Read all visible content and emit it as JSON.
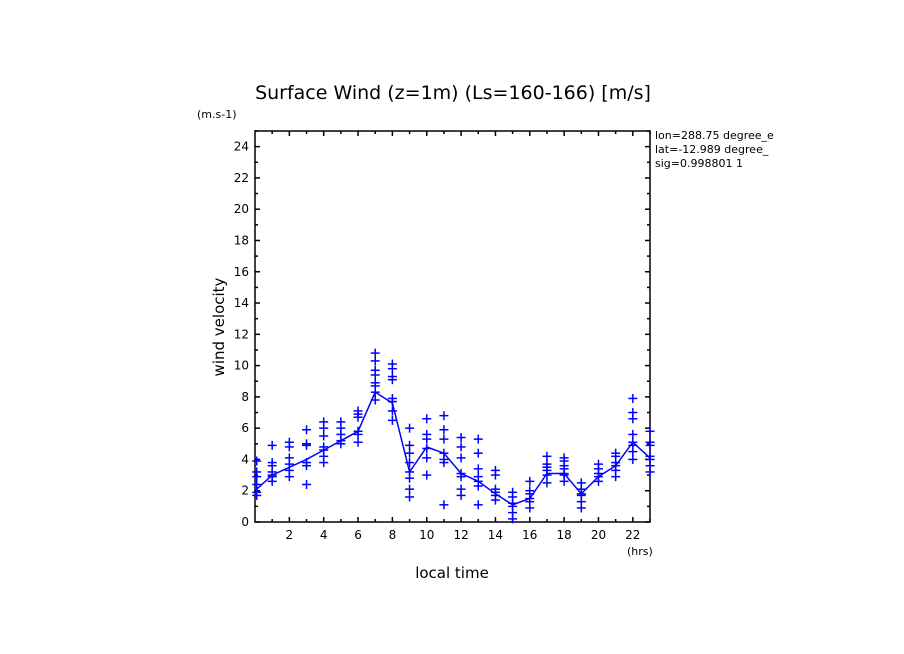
{
  "chart_data": {
    "type": "line",
    "title": "Surface Wind (z=1m) (Ls=160-166) [m/s]",
    "xlabel": "local time",
    "ylabel": "wind velocity",
    "x_unit": "(hrs)",
    "y_unit": "(m.s-1)",
    "xlim": [
      0,
      23
    ],
    "ylim": [
      0,
      25
    ],
    "xticks": [
      2,
      4,
      6,
      8,
      10,
      12,
      14,
      16,
      18,
      20,
      22
    ],
    "yticks": [
      0,
      2,
      4,
      6,
      8,
      10,
      12,
      14,
      16,
      18,
      20,
      22,
      24
    ],
    "grid": false,
    "color": "#0000ff",
    "annotations": [
      "lon=288.75 degree_e",
      "lat=-12.989 degree_",
      "sig=0.998801 1"
    ],
    "series": [
      {
        "kind": "line",
        "x": [
          0.1,
          1.0,
          2.0,
          3.0,
          4.0,
          5.0,
          6.0,
          7.0,
          8.0,
          9.0,
          10.0,
          11.0,
          12.0,
          13.0,
          14.0,
          15.0,
          16.0,
          17.0,
          18.0,
          19.0,
          20.0,
          21.0,
          22.0,
          23.0
        ],
        "y": [
          2.1,
          3.0,
          3.5,
          4.0,
          4.6,
          5.2,
          5.8,
          8.3,
          7.6,
          3.2,
          4.8,
          4.4,
          3.1,
          2.6,
          1.8,
          1.1,
          1.5,
          3.1,
          3.1,
          1.8,
          2.9,
          3.6,
          5.1,
          4.1
        ]
      },
      {
        "kind": "scatter",
        "points": [
          [
            0.1,
            1.7
          ],
          [
            0.1,
            1.9
          ],
          [
            0.1,
            2.4
          ],
          [
            0.1,
            2.9
          ],
          [
            0.1,
            3.2
          ],
          [
            0.1,
            3.9
          ],
          [
            1.0,
            2.6
          ],
          [
            1.0,
            2.9
          ],
          [
            1.0,
            3.0
          ],
          [
            1.0,
            3.2
          ],
          [
            1.0,
            3.6
          ],
          [
            1.0,
            3.8
          ],
          [
            1.0,
            4.9
          ],
          [
            2.0,
            2.9
          ],
          [
            2.0,
            3.3
          ],
          [
            2.0,
            3.7
          ],
          [
            2.0,
            4.1
          ],
          [
            2.0,
            4.8
          ],
          [
            2.0,
            5.1
          ],
          [
            3.0,
            2.4
          ],
          [
            3.0,
            3.6
          ],
          [
            3.0,
            3.8
          ],
          [
            3.0,
            4.9
          ],
          [
            3.0,
            5.0
          ],
          [
            3.0,
            5.9
          ],
          [
            4.0,
            3.8
          ],
          [
            4.0,
            4.2
          ],
          [
            4.0,
            4.6
          ],
          [
            4.0,
            4.8
          ],
          [
            4.0,
            5.5
          ],
          [
            4.0,
            6.0
          ],
          [
            4.0,
            6.4
          ],
          [
            5.0,
            5.0
          ],
          [
            5.0,
            5.2
          ],
          [
            5.0,
            5.6
          ],
          [
            5.0,
            6.0
          ],
          [
            5.0,
            6.4
          ],
          [
            6.0,
            5.1
          ],
          [
            6.0,
            5.6
          ],
          [
            6.0,
            5.8
          ],
          [
            6.0,
            6.7
          ],
          [
            6.0,
            6.9
          ],
          [
            6.0,
            7.1
          ],
          [
            7.0,
            7.8
          ],
          [
            7.0,
            8.3
          ],
          [
            7.0,
            8.7
          ],
          [
            7.0,
            8.9
          ],
          [
            7.0,
            9.4
          ],
          [
            7.0,
            9.7
          ],
          [
            7.0,
            10.3
          ],
          [
            7.0,
            10.8
          ],
          [
            8.0,
            6.5
          ],
          [
            8.0,
            7.1
          ],
          [
            8.0,
            7.7
          ],
          [
            8.0,
            7.9
          ],
          [
            8.0,
            9.1
          ],
          [
            8.0,
            9.3
          ],
          [
            8.0,
            9.8
          ],
          [
            8.0,
            10.1
          ],
          [
            9.0,
            1.6
          ],
          [
            9.0,
            2.1
          ],
          [
            9.0,
            2.8
          ],
          [
            9.0,
            3.2
          ],
          [
            9.0,
            3.8
          ],
          [
            9.0,
            4.4
          ],
          [
            9.0,
            4.9
          ],
          [
            9.0,
            6.0
          ],
          [
            10.0,
            3.0
          ],
          [
            10.0,
            4.1
          ],
          [
            10.0,
            4.7
          ],
          [
            10.0,
            5.3
          ],
          [
            10.0,
            5.6
          ],
          [
            10.0,
            6.6
          ],
          [
            11.0,
            1.1
          ],
          [
            11.0,
            3.8
          ],
          [
            11.0,
            4.0
          ],
          [
            11.0,
            4.4
          ],
          [
            11.0,
            5.3
          ],
          [
            11.0,
            5.9
          ],
          [
            11.0,
            6.8
          ],
          [
            12.0,
            1.7
          ],
          [
            12.0,
            2.1
          ],
          [
            12.0,
            2.9
          ],
          [
            12.0,
            3.1
          ],
          [
            12.0,
            4.1
          ],
          [
            12.0,
            4.8
          ],
          [
            12.0,
            5.4
          ],
          [
            13.0,
            1.1
          ],
          [
            13.0,
            2.3
          ],
          [
            13.0,
            2.6
          ],
          [
            13.0,
            2.9
          ],
          [
            13.0,
            3.4
          ],
          [
            13.0,
            4.4
          ],
          [
            13.0,
            5.3
          ],
          [
            14.0,
            1.4
          ],
          [
            14.0,
            1.7
          ],
          [
            14.0,
            1.9
          ],
          [
            14.0,
            2.1
          ],
          [
            14.0,
            3.0
          ],
          [
            14.0,
            3.3
          ],
          [
            15.0,
            0.2
          ],
          [
            15.0,
            0.6
          ],
          [
            15.0,
            1.0
          ],
          [
            15.0,
            1.2
          ],
          [
            15.0,
            1.6
          ],
          [
            15.0,
            1.9
          ],
          [
            16.0,
            0.9
          ],
          [
            16.0,
            1.3
          ],
          [
            16.0,
            1.5
          ],
          [
            16.0,
            1.8
          ],
          [
            16.0,
            2.0
          ],
          [
            16.0,
            2.6
          ],
          [
            17.0,
            2.5
          ],
          [
            17.0,
            3.0
          ],
          [
            17.0,
            3.3
          ],
          [
            17.0,
            3.5
          ],
          [
            17.0,
            3.7
          ],
          [
            17.0,
            4.2
          ],
          [
            18.0,
            2.6
          ],
          [
            18.0,
            3.0
          ],
          [
            18.0,
            3.1
          ],
          [
            18.0,
            3.4
          ],
          [
            18.0,
            3.6
          ],
          [
            18.0,
            3.9
          ],
          [
            18.0,
            4.1
          ],
          [
            19.0,
            0.9
          ],
          [
            19.0,
            1.3
          ],
          [
            19.0,
            1.7
          ],
          [
            19.0,
            1.8
          ],
          [
            19.0,
            2.1
          ],
          [
            19.0,
            2.5
          ],
          [
            20.0,
            2.6
          ],
          [
            20.0,
            2.9
          ],
          [
            20.0,
            3.1
          ],
          [
            20.0,
            3.4
          ],
          [
            20.0,
            3.7
          ],
          [
            21.0,
            2.9
          ],
          [
            21.0,
            3.3
          ],
          [
            21.0,
            3.6
          ],
          [
            21.0,
            3.8
          ],
          [
            21.0,
            4.2
          ],
          [
            21.0,
            4.4
          ],
          [
            22.0,
            4.0
          ],
          [
            22.0,
            4.5
          ],
          [
            22.0,
            4.9
          ],
          [
            22.0,
            5.1
          ],
          [
            22.0,
            5.6
          ],
          [
            22.0,
            6.6
          ],
          [
            22.0,
            7.0
          ],
          [
            22.0,
            7.9
          ],
          [
            23.0,
            3.2
          ],
          [
            23.0,
            3.6
          ],
          [
            23.0,
            4.0
          ],
          [
            23.0,
            4.2
          ],
          [
            23.0,
            4.9
          ],
          [
            23.0,
            5.1
          ],
          [
            23.0,
            5.8
          ]
        ]
      }
    ]
  }
}
